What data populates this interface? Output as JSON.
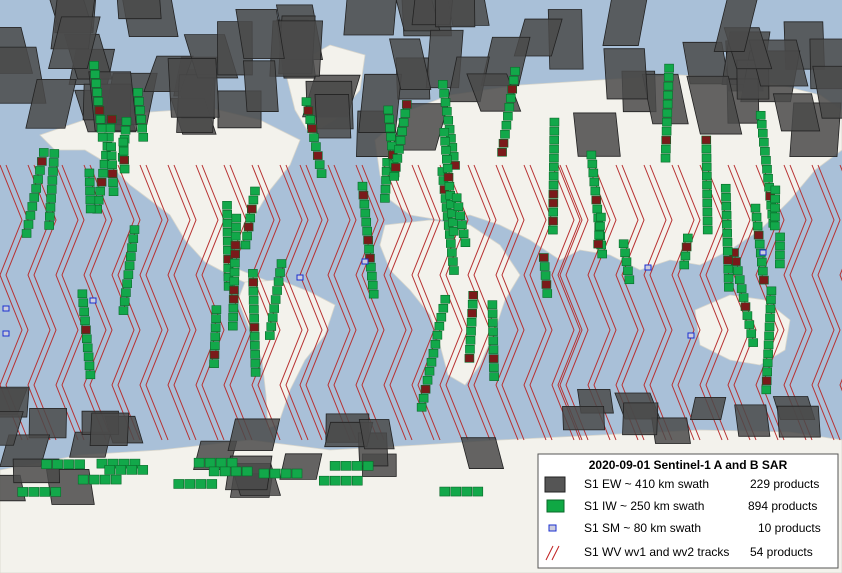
{
  "legend": {
    "title": "2020-09-01 Sentinel-1  A and B   SAR",
    "items": [
      {
        "label": "S1 EW ~ 410 km swath",
        "count": "229 products"
      },
      {
        "label": "S1 IW  ~ 250 km swath",
        "count": "894 products"
      },
      {
        "label": "S1 SM ~ 80 km swath",
        "count": "10 products"
      },
      {
        "label": "S1 WV  wv1 and wv2 tracks",
        "count": "54 products"
      }
    ]
  }
}
